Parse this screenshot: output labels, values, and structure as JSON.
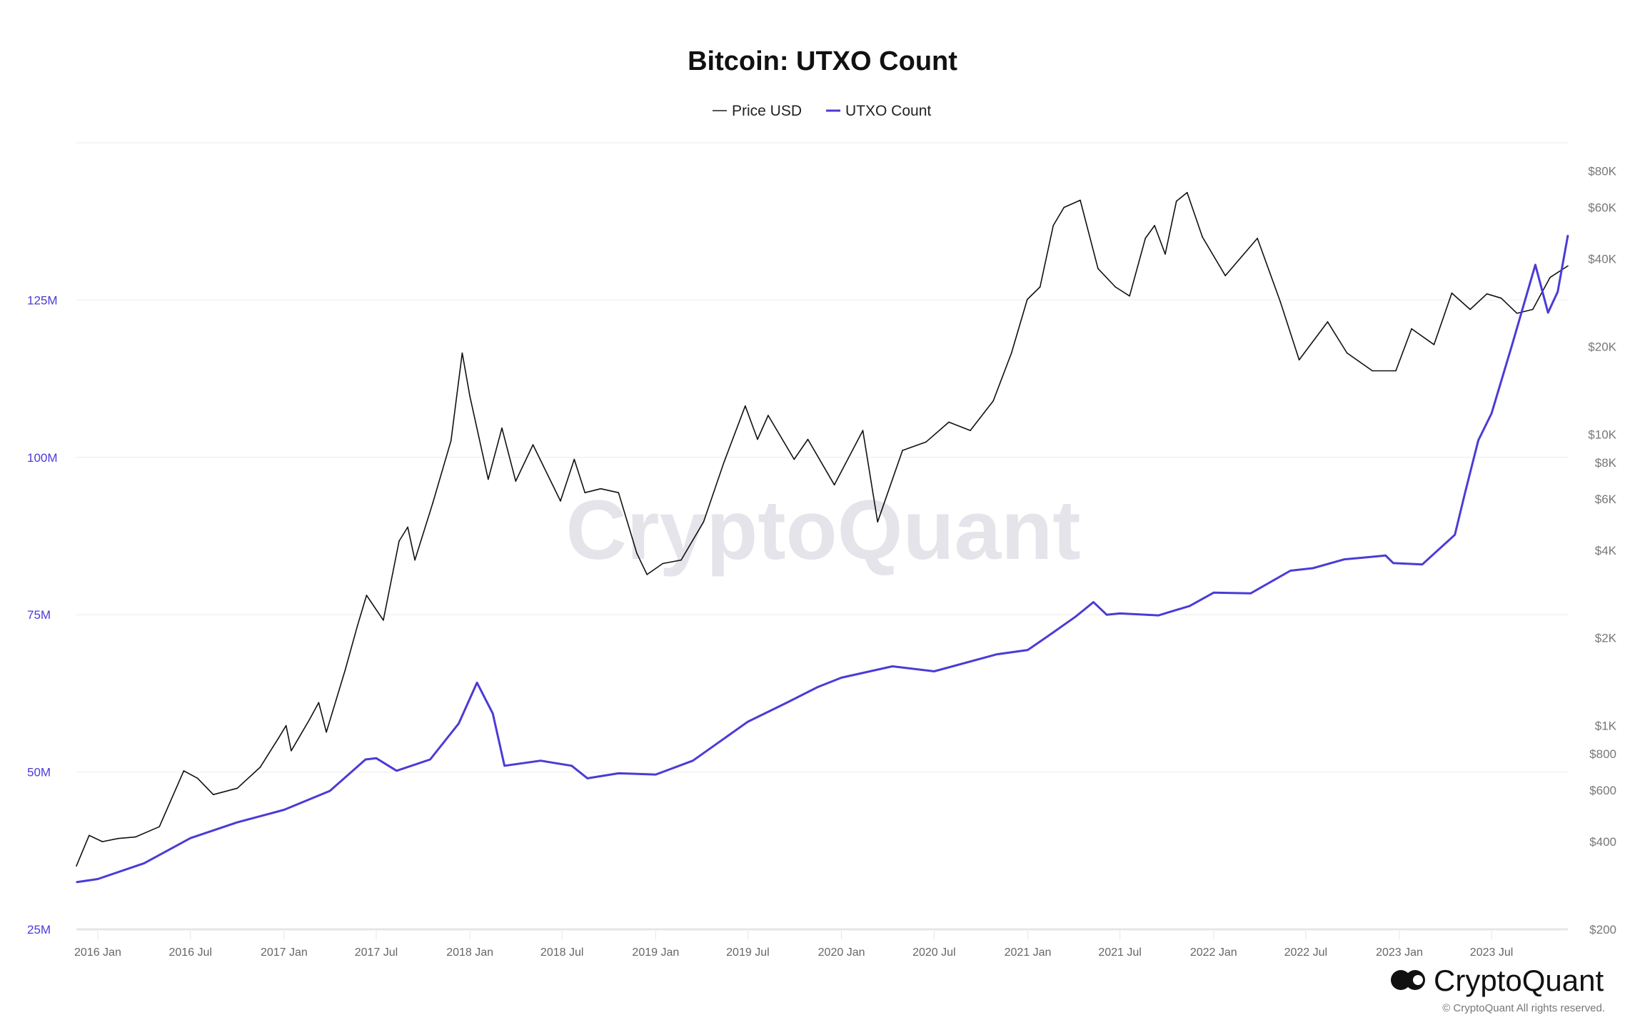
{
  "chart_data": {
    "type": "line",
    "title": "Bitcoin: UTXO Count",
    "legend": {
      "placement": "top-center",
      "entries": [
        "Price USD",
        "UTXO Count"
      ]
    },
    "watermark": "CryptoQuant",
    "brand": {
      "logo_text": "CryptoQuant",
      "copyright": "© CryptoQuant All rights reserved."
    },
    "grid": true,
    "x_axis": {
      "type": "date",
      "range": [
        "2015-11-20",
        "2023-11-28"
      ],
      "ticks": [
        {
          "date": "2016-01-01",
          "label": "2016 Jan"
        },
        {
          "date": "2016-07-01",
          "label": "2016 Jul"
        },
        {
          "date": "2017-01-01",
          "label": "2017 Jan"
        },
        {
          "date": "2017-07-01",
          "label": "2017 Jul"
        },
        {
          "date": "2018-01-01",
          "label": "2018 Jan"
        },
        {
          "date": "2018-07-01",
          "label": "2018 Jul"
        },
        {
          "date": "2019-01-01",
          "label": "2019 Jan"
        },
        {
          "date": "2019-07-01",
          "label": "2019 Jul"
        },
        {
          "date": "2020-01-01",
          "label": "2020 Jan"
        },
        {
          "date": "2020-07-01",
          "label": "2020 Jul"
        },
        {
          "date": "2021-01-01",
          "label": "2021 Jan"
        },
        {
          "date": "2021-07-01",
          "label": "2021 Jul"
        },
        {
          "date": "2022-01-01",
          "label": "2022 Jan"
        },
        {
          "date": "2022-07-01",
          "label": "2022 Jul"
        },
        {
          "date": "2023-01-01",
          "label": "2023 Jan"
        },
        {
          "date": "2023-07-01",
          "label": "2023 Jul"
        }
      ]
    },
    "y_left": {
      "scale": "linear",
      "range": [
        25000000,
        150000000
      ],
      "color": "#4b3bd6",
      "ticks": [
        {
          "value": 25000000,
          "label": "25M"
        },
        {
          "value": 50000000,
          "label": "50M"
        },
        {
          "value": 75000000,
          "label": "75M"
        },
        {
          "value": 100000000,
          "label": "100M"
        },
        {
          "value": 125000000,
          "label": "125M"
        }
      ]
    },
    "y_right": {
      "scale": "log",
      "range": [
        200,
        100000
      ],
      "color": "#777777",
      "ticks": [
        {
          "value": 200,
          "label": "$200"
        },
        {
          "value": 400,
          "label": "$400"
        },
        {
          "value": 600,
          "label": "$600"
        },
        {
          "value": 800,
          "label": "$800"
        },
        {
          "value": 1000,
          "label": "$1K"
        },
        {
          "value": 2000,
          "label": "$2K"
        },
        {
          "value": 4000,
          "label": "$4K"
        },
        {
          "value": 6000,
          "label": "$6K"
        },
        {
          "value": 8000,
          "label": "$8K"
        },
        {
          "value": 10000,
          "label": "$10K"
        },
        {
          "value": 20000,
          "label": "$20K"
        },
        {
          "value": 40000,
          "label": "$40K"
        },
        {
          "value": 60000,
          "label": "$60K"
        },
        {
          "value": 80000,
          "label": "$80K"
        }
      ]
    },
    "series": [
      {
        "name": "Price USD",
        "axis": "right",
        "color": "#111111",
        "x": [
          "2015-11-20",
          "2015-12-15",
          "2016-01-10",
          "2016-02-10",
          "2016-03-15",
          "2016-05-01",
          "2016-06-18",
          "2016-07-15",
          "2016-08-15",
          "2016-10-01",
          "2016-11-15",
          "2016-12-20",
          "2017-01-05",
          "2017-01-15",
          "2017-02-20",
          "2017-03-10",
          "2017-03-25",
          "2017-05-01",
          "2017-05-25",
          "2017-06-12",
          "2017-07-15",
          "2017-08-15",
          "2017-09-01",
          "2017-09-15",
          "2017-10-20",
          "2017-11-25",
          "2017-12-17",
          "2018-01-01",
          "2018-02-06",
          "2018-03-05",
          "2018-04-01",
          "2018-05-05",
          "2018-06-28",
          "2018-07-25",
          "2018-08-15",
          "2018-09-15",
          "2018-10-20",
          "2018-11-25",
          "2018-12-15",
          "2019-01-15",
          "2019-02-20",
          "2019-04-05",
          "2019-05-15",
          "2019-06-26",
          "2019-07-20",
          "2019-08-10",
          "2019-09-30",
          "2019-10-27",
          "2019-12-18",
          "2020-02-12",
          "2020-03-12",
          "2020-04-30",
          "2020-06-15",
          "2020-07-30",
          "2020-09-10",
          "2020-10-25",
          "2020-11-30",
          "2020-12-31",
          "2021-01-25",
          "2021-02-20",
          "2021-03-13",
          "2021-04-14",
          "2021-05-19",
          "2021-06-22",
          "2021-07-20",
          "2021-08-20",
          "2021-09-07",
          "2021-09-28",
          "2021-10-20",
          "2021-11-10",
          "2021-12-10",
          "2022-01-24",
          "2022-03-28",
          "2022-05-12",
          "2022-06-18",
          "2022-08-13",
          "2022-09-20",
          "2022-11-09",
          "2022-12-25",
          "2023-01-25",
          "2023-03-10",
          "2023-04-14",
          "2023-05-20",
          "2023-06-22",
          "2023-07-20",
          "2023-08-20",
          "2023-09-20",
          "2023-10-24",
          "2023-11-28"
        ],
        "values": [
          330,
          420,
          400,
          410,
          415,
          450,
          700,
          660,
          580,
          610,
          720,
          900,
          1000,
          820,
          1050,
          1200,
          950,
          1550,
          2200,
          2800,
          2300,
          4300,
          4800,
          3700,
          5800,
          9500,
          19000,
          13500,
          7000,
          10500,
          6900,
          9200,
          5900,
          8200,
          6300,
          6500,
          6300,
          3900,
          3300,
          3600,
          3700,
          5000,
          8000,
          12500,
          9600,
          11600,
          8200,
          9600,
          6700,
          10300,
          5000,
          8800,
          9400,
          11000,
          10300,
          13000,
          19000,
          29000,
          32000,
          52000,
          60000,
          63500,
          37000,
          32000,
          29800,
          47000,
          52000,
          41500,
          63000,
          67500,
          47500,
          35000,
          47000,
          28500,
          18000,
          24300,
          19000,
          16500,
          16500,
          23000,
          20300,
          30500,
          26800,
          30300,
          29300,
          26000,
          26800,
          34500,
          37800
        ]
      },
      {
        "name": "UTXO Count",
        "axis": "left",
        "color": "#4b3bd6",
        "x": [
          "2015-11-20",
          "2016-01-01",
          "2016-04-01",
          "2016-07-01",
          "2016-10-01",
          "2017-01-01",
          "2017-04-01",
          "2017-06-10",
          "2017-07-01",
          "2017-08-10",
          "2017-10-15",
          "2017-12-10",
          "2018-01-15",
          "2018-02-15",
          "2018-03-10",
          "2018-05-20",
          "2018-07-20",
          "2018-08-20",
          "2018-10-20",
          "2019-01-01",
          "2019-03-15",
          "2019-07-01",
          "2019-09-15",
          "2019-11-15",
          "2020-01-01",
          "2020-04-10",
          "2020-07-01",
          "2020-11-01",
          "2021-01-01",
          "2021-02-15",
          "2021-04-05",
          "2021-05-10",
          "2021-06-05",
          "2021-07-01",
          "2021-09-15",
          "2021-11-15",
          "2022-01-01",
          "2022-03-15",
          "2022-06-01",
          "2022-07-15",
          "2022-09-15",
          "2022-12-05",
          "2022-12-20",
          "2023-02-15",
          "2023-04-20",
          "2023-05-10",
          "2023-06-05",
          "2023-07-01",
          "2023-08-10",
          "2023-09-25",
          "2023-10-20",
          "2023-11-08",
          "2023-11-28"
        ],
        "values": [
          32500000,
          33000000,
          35500000,
          39500000,
          42000000,
          44000000,
          47000000,
          52000000,
          52200000,
          50200000,
          52000000,
          57700000,
          64200000,
          59300000,
          51000000,
          51800000,
          51000000,
          49000000,
          49800000,
          49600000,
          51800000,
          58000000,
          61000000,
          63500000,
          65000000,
          66800000,
          66000000,
          68700000,
          69400000,
          71900000,
          74700000,
          77000000,
          75000000,
          75200000,
          74900000,
          76400000,
          78500000,
          78400000,
          82000000,
          82400000,
          83800000,
          84400000,
          83200000,
          83000000,
          87700000,
          94400000,
          102700000,
          107000000,
          117800000,
          130600000,
          123000000,
          126300000,
          135300000
        ]
      }
    ]
  }
}
